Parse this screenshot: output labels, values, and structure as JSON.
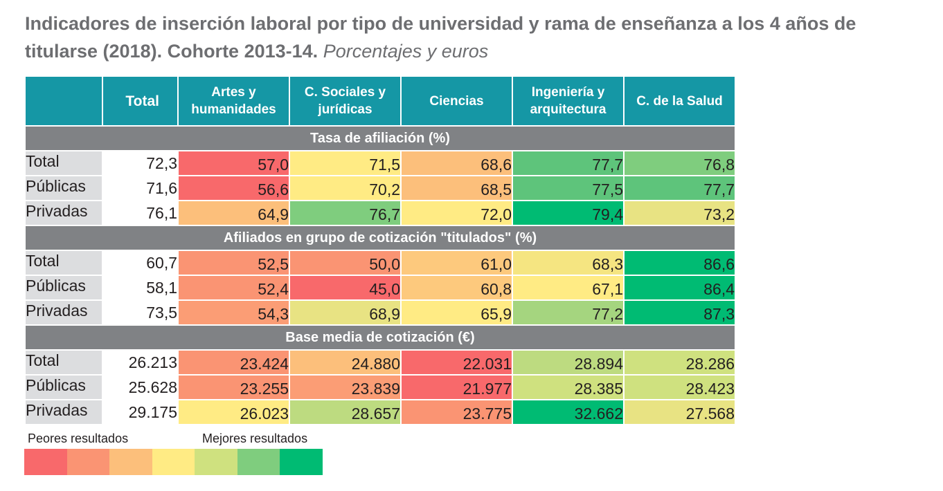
{
  "title": {
    "main": "Indicadores de inserción laboral por tipo de universidad y rama de enseñanza a los 4 años de titularse (2018). Cohorte 2013-14.",
    "sub": "Porcentajes y euros"
  },
  "columns": [
    {
      "label_lines": [
        "Total"
      ]
    },
    {
      "label_lines": [
        "Artes y",
        "humanidades"
      ]
    },
    {
      "label_lines": [
        "C. Sociales y",
        "jurídicas"
      ]
    },
    {
      "label_lines": [
        "Ciencias"
      ]
    },
    {
      "label_lines": [
        "Ingeniería y",
        "arquitectura"
      ]
    },
    {
      "label_lines": [
        "C. de la Salud"
      ]
    }
  ],
  "chart_data": {
    "type": "table",
    "title": "Indicadores de inserción laboral por tipo de universidad y rama de enseñanza a los 4 años de titularse (2018). Cohorte 2013-14.",
    "subtitle": "Porcentajes y euros",
    "columns": [
      "Total",
      "Artes y humanidades",
      "C. Sociales y jurídicas",
      "Ciencias",
      "Ingeniería y arquitectura",
      "C. de la Salud"
    ],
    "sections": [
      {
        "name": "Tasa de afiliación (%)",
        "rows": [
          {
            "label": "Total",
            "values": [
              "72,3",
              "57,0",
              "71,5",
              "68,6",
              "77,7",
              "76,8"
            ],
            "colors": [
              "#ffffff",
              "#f8696b",
              "#ffeb84",
              "#fcbf7b",
              "#5ec47b",
              "#7fcd7e"
            ]
          },
          {
            "label": "Públicas",
            "values": [
              "71,6",
              "56,6",
              "70,2",
              "68,5",
              "77,5",
              "77,7"
            ],
            "colors": [
              "#ffffff",
              "#f8696b",
              "#ffeb84",
              "#fcbf7b",
              "#5ec47b",
              "#5ec47b"
            ]
          },
          {
            "label": "Privadas",
            "values": [
              "76,1",
              "64,9",
              "76,7",
              "72,0",
              "79,4",
              "73,2"
            ],
            "colors": [
              "#ffffff",
              "#fcbf7b",
              "#7fcd7e",
              "#ffeb84",
              "#00bb73",
              "#e8e383"
            ]
          }
        ]
      },
      {
        "name": "Afiliados en grupo de cotización \"titulados\" (%)",
        "rows": [
          {
            "label": "Total",
            "values": [
              "60,7",
              "52,5",
              "50,0",
              "61,0",
              "68,3",
              "86,6"
            ],
            "colors": [
              "#ffffff",
              "#fa9473",
              "#fa9473",
              "#fdc97d",
              "#f5e581",
              "#00bb73"
            ]
          },
          {
            "label": "Públicas",
            "values": [
              "58,1",
              "52,4",
              "45,0",
              "60,8",
              "67,1",
              "86,4"
            ],
            "colors": [
              "#ffffff",
              "#fa9473",
              "#f8696b",
              "#fdc97d",
              "#ffeb84",
              "#00bb73"
            ]
          },
          {
            "label": "Privadas",
            "values": [
              "73,5",
              "54,3",
              "68,9",
              "65,9",
              "77,2",
              "87,3"
            ],
            "colors": [
              "#ffffff",
              "#fb9d75",
              "#e8e383",
              "#ffeb84",
              "#a5d57f",
              "#00bb73"
            ]
          }
        ]
      },
      {
        "name": "Base media de cotización (€)",
        "rows": [
          {
            "label": "Total",
            "values": [
              "26.213",
              "23.424",
              "24.880",
              "22.031",
              "28.894",
              "28.286"
            ],
            "colors": [
              "#ffffff",
              "#fa9473",
              "#fcbf7b",
              "#f8696b",
              "#bddb80",
              "#cfe17f"
            ]
          },
          {
            "label": "Públicas",
            "values": [
              "25.628",
              "23.255",
              "23.839",
              "21.977",
              "28.385",
              "28.423"
            ],
            "colors": [
              "#ffffff",
              "#fa9473",
              "#fb9d75",
              "#f8696b",
              "#cfe17f",
              "#cfe17f"
            ]
          },
          {
            "label": "Privadas",
            "values": [
              "29.175",
              "26.023",
              "28.657",
              "23.775",
              "32.662",
              "27.568"
            ],
            "colors": [
              "#ffffff",
              "#ffeb84",
              "#bddb80",
              "#fa9473",
              "#00bb73",
              "#e8e383"
            ]
          }
        ]
      }
    ]
  },
  "legend": {
    "low_label": "Peores resultados",
    "high_label": "Mejores resultados",
    "scale_colors": [
      "#f8696b",
      "#fa9473",
      "#fcbf7b",
      "#ffeb84",
      "#cfe17f",
      "#7fcd7e",
      "#00bb73"
    ]
  },
  "colors": {
    "header_bg": "#1597a5",
    "section_bg": "#808285",
    "label_bg": "#dcdddf",
    "title_text": "#6d6e71"
  }
}
